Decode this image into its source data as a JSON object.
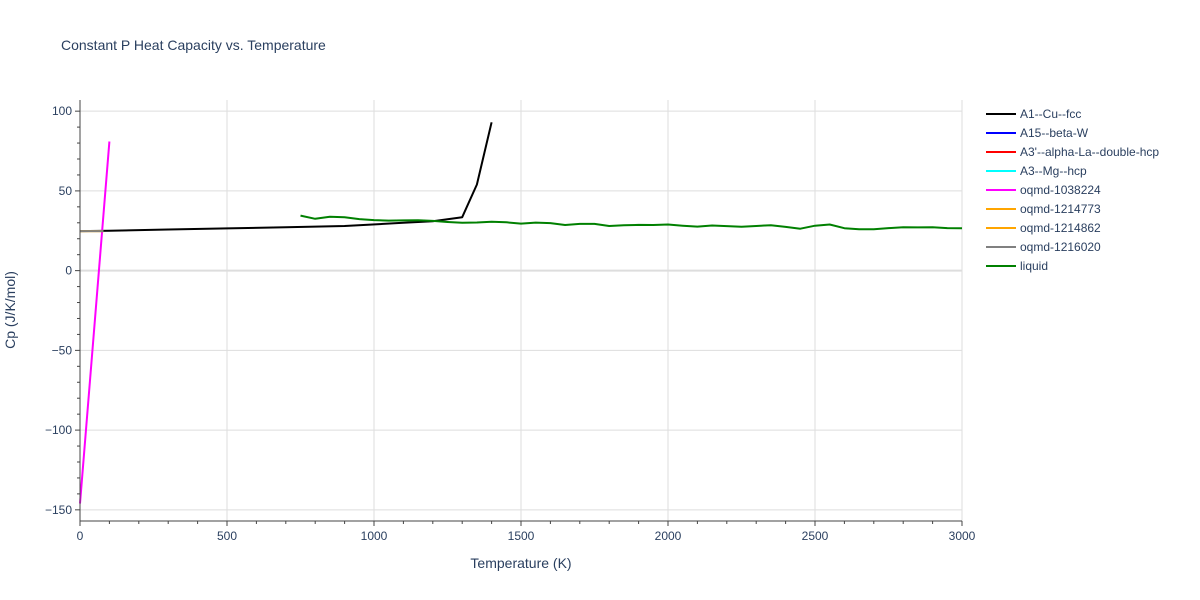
{
  "chart_data": {
    "type": "line",
    "title": "Constant P Heat Capacity vs. Temperature",
    "xlabel": "Temperature (K)",
    "ylabel": "Cp (J/K/mol)",
    "xlim": [
      0,
      3000
    ],
    "ylim": [
      -157,
      107
    ],
    "xticks": [
      0,
      500,
      1000,
      1500,
      2000,
      2500,
      3000
    ],
    "xtick_labels": [
      "0",
      "500",
      "1000",
      "1500",
      "2000",
      "2500",
      "3000"
    ],
    "yticks": [
      -150,
      -100,
      -50,
      0,
      50,
      100
    ],
    "ytick_labels": [
      "−150",
      "−100",
      "−50",
      "0",
      "50",
      "100"
    ],
    "grid": true,
    "legend_position": "right",
    "series": [
      {
        "name": "A1--Cu--fcc",
        "color": "#000000",
        "x": [
          0,
          100,
          300,
          500,
          700,
          900,
          1100,
          1200,
          1300,
          1350,
          1400
        ],
        "y": [
          24.8,
          25.0,
          25.8,
          26.5,
          27.2,
          28.0,
          30.0,
          31.0,
          33.5,
          54.0,
          93.0
        ]
      },
      {
        "name": "A15--beta-W",
        "color": "#0000ff",
        "x": [],
        "y": []
      },
      {
        "name": "A3'--alpha-La--double-hcp",
        "color": "#ff0000",
        "x": [],
        "y": []
      },
      {
        "name": "A3--Mg--hcp",
        "color": "#00ffff",
        "x": [],
        "y": []
      },
      {
        "name": "oqmd-1038224",
        "color": "#ff00ff",
        "x": [
          0,
          100
        ],
        "y": [
          -146,
          81
        ]
      },
      {
        "name": "oqmd-1214773",
        "color": "#ffa500",
        "x": [
          0,
          80
        ],
        "y": [
          24.8,
          24.8
        ]
      },
      {
        "name": "oqmd-1214862",
        "color": "#ffa500",
        "x": [
          0,
          80
        ],
        "y": [
          24.8,
          24.8
        ]
      },
      {
        "name": "oqmd-1216020",
        "color": "#808080",
        "x": [
          0,
          80
        ],
        "y": [
          24.8,
          24.8
        ]
      },
      {
        "name": "liquid",
        "color": "#008000",
        "x": [
          750,
          800,
          850,
          900,
          950,
          1000,
          1050,
          1100,
          1150,
          1200,
          1250,
          1300,
          1350,
          1400,
          1450,
          1500,
          1550,
          1600,
          1650,
          1700,
          1750,
          1800,
          1850,
          1900,
          1950,
          2000,
          2050,
          2100,
          2150,
          2200,
          2250,
          2300,
          2350,
          2400,
          2450,
          2500,
          2550,
          2600,
          2650,
          2700,
          2750,
          2800,
          2850,
          2900,
          2950,
          3000
        ],
        "y": [
          34.5,
          32.5,
          33.8,
          33.5,
          32.3,
          31.7,
          31.4,
          31.5,
          31.6,
          31.2,
          30.5,
          30.0,
          30.2,
          30.7,
          30.3,
          29.5,
          30.1,
          29.8,
          28.6,
          29.3,
          29.3,
          28.0,
          28.4,
          28.7,
          28.6,
          28.9,
          28.2,
          27.6,
          28.3,
          27.9,
          27.5,
          28.0,
          28.5,
          27.4,
          26.3,
          28.2,
          28.9,
          26.6,
          26.0,
          26.0,
          26.7,
          27.2,
          27.1,
          27.2,
          26.7,
          26.6
        ]
      }
    ]
  }
}
